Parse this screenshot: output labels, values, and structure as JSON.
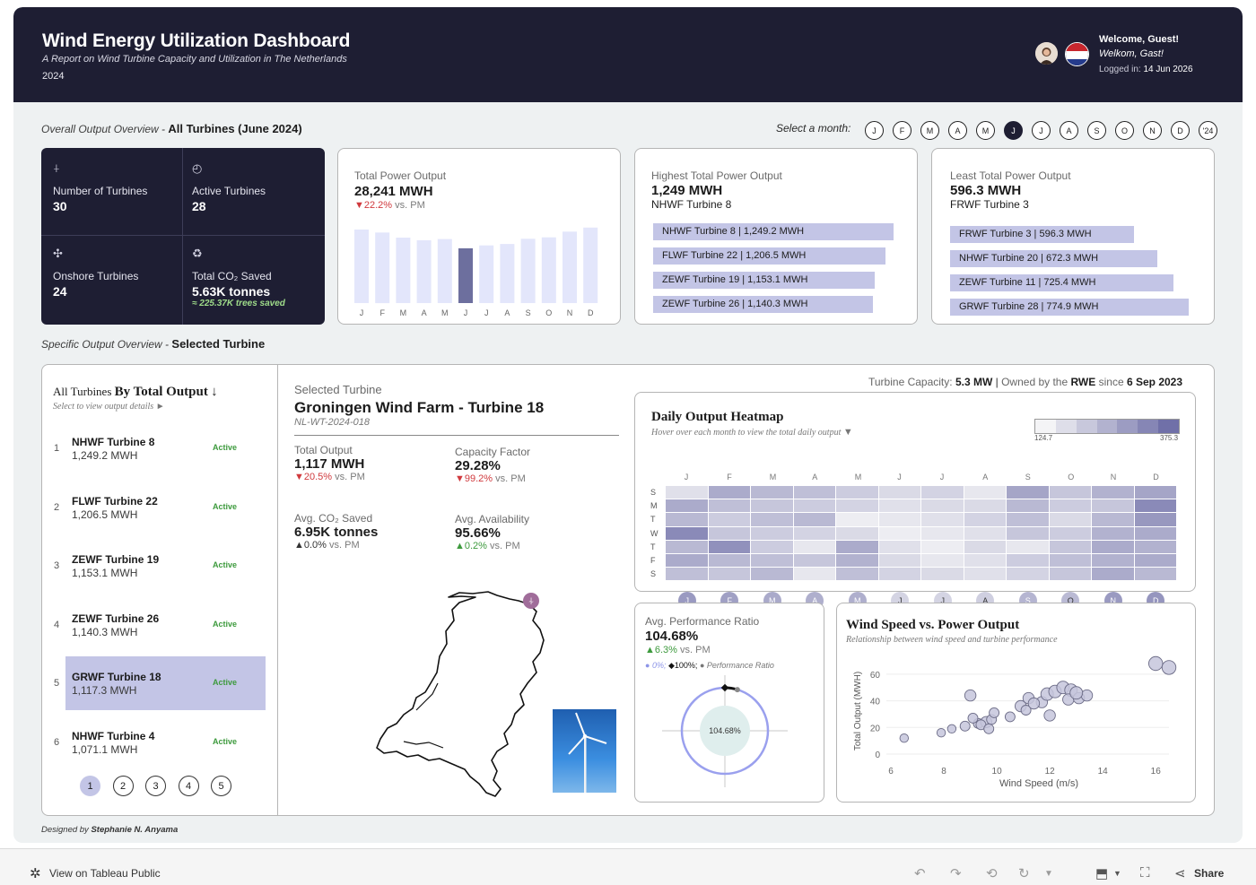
{
  "header": {
    "title": "Wind Energy Utilization Dashboard",
    "subtitle": "A Report on Wind Turbine Capacity and Utilization in The Netherlands",
    "year": "2024",
    "welcome_en": "Welcome, Guest!",
    "welcome_nl": "Welkom, Gast!",
    "logged_label": "Logged in:",
    "logged_date": "14 Jun 2026"
  },
  "overview": {
    "section_label": "Overall Output Overview -",
    "section_title": "All Turbines (June 2024)",
    "select_month_label": "Select a month:",
    "months": [
      "J",
      "F",
      "M",
      "A",
      "M",
      "J",
      "J",
      "A",
      "S",
      "O",
      "N",
      "D",
      "'24"
    ],
    "active_month_index": 5
  },
  "summary": {
    "num_turbines_label": "Number of Turbines",
    "num_turbines": "30",
    "active_label": "Active Turbines",
    "active": "28",
    "onshore_label": "Onshore Turbines",
    "onshore": "24",
    "co2_label": "Total CO₂ Saved",
    "co2": "5.63K tonnes",
    "trees": "≈ 225.37K trees saved"
  },
  "total_output": {
    "label": "Total Power Output",
    "value": "28,241 MWH",
    "change": "▼22.2%",
    "change_suffix": "vs. PM",
    "months": [
      "J",
      "F",
      "M",
      "A",
      "M",
      "J",
      "J",
      "A",
      "S",
      "O",
      "N",
      "D"
    ],
    "values": [
      2550,
      2450,
      2270,
      2180,
      2220,
      1900,
      2000,
      2050,
      2230,
      2280,
      2480,
      2620
    ],
    "highlight_index": 5
  },
  "highest": {
    "label": "Highest Total Power Output",
    "value": "1,249 MWH",
    "turbine": "NHWF Turbine 8",
    "bars": [
      {
        "name": "NHWF Turbine 8",
        "value": "1,249.2 MWH",
        "num": 1249.2
      },
      {
        "name": "FLWF Turbine 22",
        "value": "1,206.5 MWH",
        "num": 1206.5
      },
      {
        "name": "ZEWF Turbine 19",
        "value": "1,153.1 MWH",
        "num": 1153.1
      },
      {
        "name": "ZEWF Turbine 26",
        "value": "1,140.3 MWH",
        "num": 1140.3
      }
    ]
  },
  "least": {
    "label": "Least Total Power Output",
    "value": "596.3 MWH",
    "turbine": "FRWF Turbine 3",
    "bars": [
      {
        "name": "FRWF Turbine 3",
        "value": "596.3 MWH",
        "num": 596.3
      },
      {
        "name": "NHWF Turbine 20",
        "value": "672.3 MWH",
        "num": 672.3
      },
      {
        "name": "ZEWF Turbine 11",
        "value": "725.4 MWH",
        "num": 725.4
      },
      {
        "name": "GRWF Turbine 28",
        "value": "774.9 MWH",
        "num": 774.9
      }
    ]
  },
  "specific": {
    "section_label": "Specific Output Overview -",
    "section_title": "Selected Turbine"
  },
  "turbine_list": {
    "title_prefix": "All Turbines",
    "title_main": "By Total Output",
    "hint": "Select to view output details ►",
    "rows": [
      {
        "rank": "1",
        "name": "NHWF Turbine 8",
        "output": "1,249.2 MWH",
        "status": "Active"
      },
      {
        "rank": "2",
        "name": "FLWF Turbine 22",
        "output": "1,206.5 MWH",
        "status": "Active"
      },
      {
        "rank": "3",
        "name": "ZEWF Turbine 19",
        "output": "1,153.1 MWH",
        "status": "Active"
      },
      {
        "rank": "4",
        "name": "ZEWF Turbine 26",
        "output": "1,140.3 MWH",
        "status": "Active"
      },
      {
        "rank": "5",
        "name": "GRWF Turbine 18",
        "output": "1,117.3 MWH",
        "status": "Active"
      },
      {
        "rank": "6",
        "name": "NHWF Turbine 4",
        "output": "1,071.1 MWH",
        "status": "Active"
      }
    ],
    "selected_index": 4,
    "pages": [
      "1",
      "2",
      "3",
      "4",
      "5"
    ],
    "active_page": 0
  },
  "selected": {
    "label": "Selected Turbine",
    "name": "Groningen Wind Farm - Turbine 18",
    "id": "NL-WT-2024-018",
    "capacity_label": "Turbine Capacity:",
    "capacity": "5.3 MW",
    "owned_label": "Owned by the",
    "owner": "RWE",
    "since_label": "since",
    "since": "6 Sep 2023",
    "total_output_label": "Total Output",
    "total_output": "1,117 MWH",
    "total_output_change": "▼20.5%",
    "cap_factor_label": "Capacity Factor",
    "cap_factor": "29.28%",
    "cap_factor_change": "▼99.2%",
    "co2_label": "Avg. CO₂ Saved",
    "co2": "6.95K tonnes",
    "co2_change": "▲0.0%",
    "avail_label": "Avg. Availability",
    "avail": "95.66%",
    "avail_change": "▲0.2%",
    "vs_pm": "vs. PM"
  },
  "heatmap": {
    "title": "Daily Output Heatmap",
    "hint": "Hover over each month to view the total daily output",
    "legend_min": "124.7",
    "legend_max": "375.3",
    "months": [
      "J",
      "F",
      "M",
      "A",
      "M",
      "J",
      "J",
      "A",
      "S",
      "O",
      "N",
      "D"
    ],
    "days": [
      "S",
      "M",
      "T",
      "W",
      "T",
      "F",
      "S"
    ],
    "values": [
      [
        0.15,
        0.55,
        0.45,
        0.4,
        0.3,
        0.2,
        0.25,
        0.1,
        0.6,
        0.35,
        0.5,
        0.6
      ],
      [
        0.55,
        0.4,
        0.35,
        0.3,
        0.25,
        0.15,
        0.2,
        0.2,
        0.45,
        0.3,
        0.35,
        0.8
      ],
      [
        0.45,
        0.3,
        0.4,
        0.45,
        0.05,
        0.1,
        0.15,
        0.25,
        0.4,
        0.2,
        0.45,
        0.7
      ],
      [
        0.8,
        0.35,
        0.3,
        0.25,
        0.2,
        0.05,
        0.1,
        0.15,
        0.35,
        0.3,
        0.5,
        0.55
      ],
      [
        0.45,
        0.75,
        0.3,
        0.1,
        0.55,
        0.15,
        0.05,
        0.2,
        0.1,
        0.35,
        0.55,
        0.5
      ],
      [
        0.55,
        0.45,
        0.4,
        0.35,
        0.5,
        0.2,
        0.1,
        0.15,
        0.3,
        0.4,
        0.5,
        0.55
      ],
      [
        0.4,
        0.35,
        0.45,
        0.1,
        0.4,
        0.25,
        0.2,
        0.15,
        0.25,
        0.35,
        0.55,
        0.45
      ]
    ],
    "month_shade": [
      0.6,
      0.55,
      0.45,
      0.4,
      0.4,
      0.05,
      0.05,
      0.1,
      0.35,
      0.3,
      0.6,
      0.65
    ]
  },
  "performance": {
    "label": "Avg. Performance Ratio",
    "value": "104.68%",
    "change": "▲6.3%",
    "change_suffix": "vs. PM",
    "legend_zero": "0%;",
    "legend_hundred": "100%;",
    "legend_label": "Performance Ratio",
    "center_value": "104.68%",
    "ratio": 1.0468
  },
  "scatter": {
    "title": "Wind Speed vs. Power Output",
    "subtitle": "Relationship between wind speed and turbine performance",
    "xlabel": "Wind Speed (m/s)",
    "ylabel": "Total Output (MWH)",
    "xticks": [
      "6",
      "8",
      "10",
      "12",
      "14",
      "16"
    ],
    "yticks": [
      "0",
      "20",
      "40",
      "60"
    ],
    "chart_data": {
      "type": "scatter",
      "xlim": [
        6,
        16.5
      ],
      "ylim": [
        0,
        70
      ],
      "points": [
        [
          6.5,
          12,
          5
        ],
        [
          7.9,
          16,
          5
        ],
        [
          8.3,
          19,
          5
        ],
        [
          8.8,
          21,
          6
        ],
        [
          9.3,
          23,
          6
        ],
        [
          9.0,
          44,
          7
        ],
        [
          9.6,
          24,
          7
        ],
        [
          9.8,
          26,
          6
        ],
        [
          9.4,
          22,
          6
        ],
        [
          9.1,
          27,
          6
        ],
        [
          9.9,
          31,
          6
        ],
        [
          9.7,
          19,
          6
        ],
        [
          10.5,
          28,
          6
        ],
        [
          10.9,
          36,
          7
        ],
        [
          11.1,
          33,
          6
        ],
        [
          11.2,
          42,
          7
        ],
        [
          11.7,
          39,
          7
        ],
        [
          11.4,
          38,
          7
        ],
        [
          11.9,
          45,
          8
        ],
        [
          12.2,
          47,
          8
        ],
        [
          12.5,
          50,
          8
        ],
        [
          12.8,
          48,
          8
        ],
        [
          12.0,
          29,
          7
        ],
        [
          12.7,
          41,
          7
        ],
        [
          13.1,
          42,
          7
        ],
        [
          13.4,
          44,
          7
        ],
        [
          13.0,
          46,
          8
        ],
        [
          16.0,
          68,
          9
        ],
        [
          16.5,
          65,
          9
        ]
      ]
    }
  },
  "footer": {
    "designed_by_label": "Designed by",
    "designed_by": "Stephanie N. Anyama",
    "view_on": "View on Tableau Public",
    "share": "Share"
  }
}
